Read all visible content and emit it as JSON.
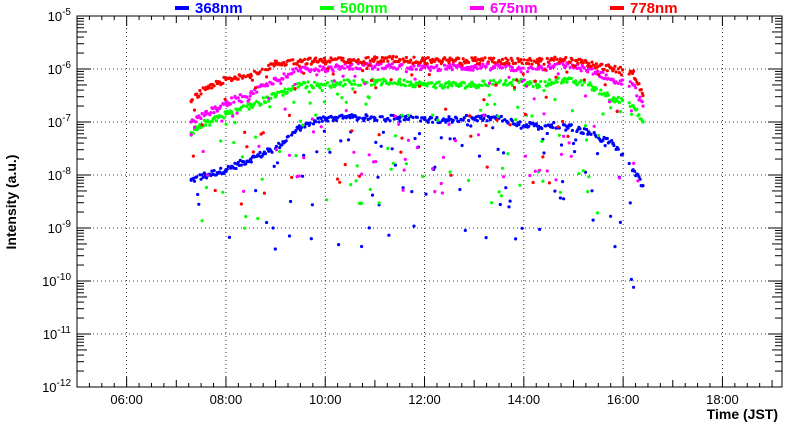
{
  "chart_data": {
    "type": "scatter",
    "title": "",
    "xlabel": "Time (JST)",
    "ylabel": "Intensity (a.u.)",
    "xlim": [
      5.0,
      19.2
    ],
    "ylim_log10": [
      -12,
      -5
    ],
    "y_scale": "log",
    "grid": true,
    "legend_position": "top",
    "x_ticks": [
      {
        "value": 6,
        "label": "06:00"
      },
      {
        "value": 8,
        "label": "08:00"
      },
      {
        "value": 10,
        "label": "10:00"
      },
      {
        "value": 12,
        "label": "12:00"
      },
      {
        "value": 14,
        "label": "14:00"
      },
      {
        "value": 16,
        "label": "16:00"
      },
      {
        "value": 18,
        "label": "18:00"
      }
    ],
    "y_ticks": [
      {
        "exp": -12,
        "base": "10",
        "power": "-12"
      },
      {
        "exp": -11,
        "base": "10",
        "power": "-11"
      },
      {
        "exp": -10,
        "base": "10",
        "power": "-10"
      },
      {
        "exp": -9,
        "base": "10",
        "power": "-9"
      },
      {
        "exp": -8,
        "base": "10",
        "power": "-8"
      },
      {
        "exp": -7,
        "base": "10",
        "power": "-7"
      },
      {
        "exp": -6,
        "base": "10",
        "power": "-6"
      },
      {
        "exp": -5,
        "base": "10",
        "power": "-5"
      }
    ],
    "series": [
      {
        "name": "368nm",
        "color": "#0000ff",
        "x": [
          7.3,
          7.6,
          8.0,
          8.5,
          9.0,
          9.5,
          10.0,
          10.5,
          11.0,
          11.5,
          12.0,
          12.5,
          13.0,
          13.5,
          13.9,
          14.3,
          14.8,
          15.3,
          15.8,
          16.2,
          16.4
        ],
        "log10_y": [
          -8.1,
          -8.0,
          -7.9,
          -7.7,
          -7.5,
          -7.1,
          -6.93,
          -6.92,
          -6.92,
          -6.93,
          -6.95,
          -6.95,
          -6.93,
          -6.93,
          -7.05,
          -7.08,
          -7.05,
          -7.2,
          -7.4,
          -7.9,
          -8.2
        ]
      },
      {
        "name": "500nm",
        "color": "#00ff00",
        "x": [
          7.3,
          7.6,
          8.0,
          8.5,
          9.0,
          9.5,
          10.0,
          10.5,
          11.0,
          11.5,
          12.0,
          12.5,
          13.0,
          13.5,
          13.9,
          14.3,
          14.8,
          15.3,
          15.8,
          16.2,
          16.4
        ],
        "log10_y": [
          -7.2,
          -7.0,
          -6.85,
          -6.7,
          -6.5,
          -6.3,
          -6.3,
          -6.25,
          -6.25,
          -6.25,
          -6.3,
          -6.3,
          -6.3,
          -6.25,
          -6.25,
          -6.3,
          -6.2,
          -6.3,
          -6.55,
          -6.7,
          -7.0
        ]
      },
      {
        "name": "675nm",
        "color": "#ff00ff",
        "x": [
          7.3,
          7.6,
          8.0,
          8.5,
          9.0,
          9.5,
          10.0,
          10.5,
          11.0,
          11.5,
          12.0,
          12.5,
          13.0,
          13.5,
          13.9,
          14.3,
          14.8,
          15.3,
          15.8,
          16.2,
          16.4
        ],
        "log10_y": [
          -7.0,
          -6.85,
          -6.65,
          -6.45,
          -6.2,
          -6.0,
          -6.0,
          -5.95,
          -5.95,
          -5.95,
          -5.97,
          -5.97,
          -5.97,
          -5.95,
          -6.0,
          -6.0,
          -5.92,
          -6.0,
          -6.2,
          -6.3,
          -6.7
        ]
      },
      {
        "name": "778nm",
        "color": "#ff0000",
        "x": [
          7.3,
          7.6,
          8.0,
          8.5,
          9.0,
          9.5,
          10.0,
          10.5,
          11.0,
          11.5,
          12.0,
          12.5,
          13.0,
          13.5,
          13.9,
          14.3,
          14.8,
          15.3,
          15.8,
          16.2,
          16.4
        ],
        "log10_y": [
          -6.6,
          -6.35,
          -6.2,
          -6.1,
          -5.9,
          -5.85,
          -5.85,
          -5.82,
          -5.82,
          -5.82,
          -5.84,
          -5.84,
          -5.84,
          -5.84,
          -5.86,
          -5.86,
          -5.82,
          -5.9,
          -6.0,
          -6.05,
          -6.5
        ]
      }
    ]
  }
}
